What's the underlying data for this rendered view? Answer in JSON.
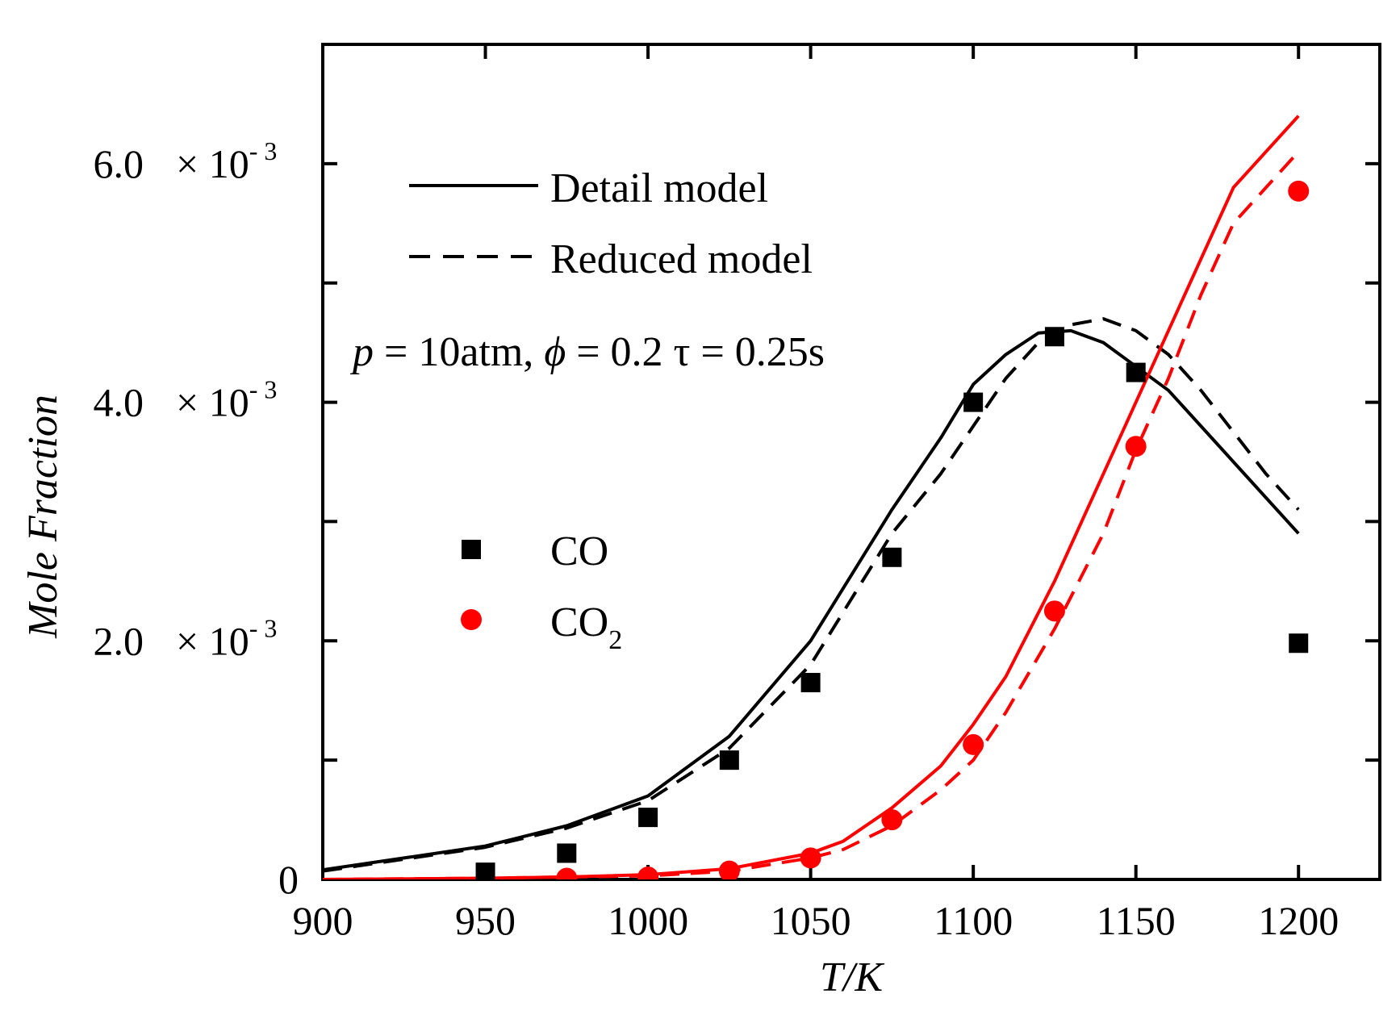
{
  "chart_data": {
    "type": "line",
    "xlabel": "T/K",
    "ylabel": "Mole Fraction",
    "xlim": [
      900,
      1225
    ],
    "ylim": [
      0,
      0.007
    ],
    "xticks": [
      900,
      950,
      1000,
      1050,
      1100,
      1150,
      1200
    ],
    "x_tick_labels": [
      "900",
      "950",
      "1000",
      "1050",
      "1100",
      "1150",
      "1200"
    ],
    "yticks_labeled": [
      {
        "value": 0,
        "mantissa": "0",
        "times": "",
        "base": "",
        "exponent": ""
      },
      {
        "value": 0.002,
        "mantissa": "2.0",
        "times": "×",
        "base": "10",
        "exponent": "- 3"
      },
      {
        "value": 0.004,
        "mantissa": "4.0",
        "times": "×",
        "base": "10",
        "exponent": "- 3"
      },
      {
        "value": 0.006,
        "mantissa": "6.0",
        "times": "×",
        "base": "10",
        "exponent": "- 3"
      }
    ],
    "yticks_minor": [
      0.001,
      0.003,
      0.005
    ],
    "annotation": {
      "p_symbol": "p",
      "p_text": " = 10atm, ",
      "phi_symbol": "ϕ",
      "phi_text": " = 0.2 τ = 0.25s"
    },
    "legend": {
      "lines": [
        {
          "label": "Detail model",
          "style": "solid"
        },
        {
          "label": "Reduced model",
          "style": "dashed"
        }
      ],
      "markers": [
        {
          "label_main": "CO",
          "label_sub": "",
          "marker": "square",
          "color": "#000000"
        },
        {
          "label_main": "CO",
          "label_sub": "2",
          "marker": "circle",
          "color": "#ff0000"
        }
      ]
    },
    "series": [
      {
        "name": "CO detail model",
        "kind": "line",
        "style": "solid",
        "color": "#000000",
        "x": [
          900,
          925,
          950,
          975,
          1000,
          1025,
          1050,
          1075,
          1090,
          1100,
          1110,
          1120,
          1130,
          1140,
          1150,
          1160,
          1170,
          1180,
          1190,
          1200
        ],
        "y": [
          8e-05,
          0.00018,
          0.00028,
          0.00045,
          0.0007,
          0.0012,
          0.002,
          0.0031,
          0.0037,
          0.00415,
          0.0044,
          0.00458,
          0.0046,
          0.0045,
          0.0043,
          0.0041,
          0.0038,
          0.0035,
          0.0032,
          0.0029
        ]
      },
      {
        "name": "CO reduced model",
        "kind": "line",
        "style": "dashed",
        "color": "#000000",
        "x": [
          900,
          925,
          950,
          975,
          1000,
          1025,
          1050,
          1075,
          1090,
          1100,
          1110,
          1120,
          1130,
          1140,
          1150,
          1160,
          1170,
          1180,
          1190,
          1200
        ],
        "y": [
          7e-05,
          0.00017,
          0.00027,
          0.00043,
          0.00066,
          0.0011,
          0.0018,
          0.0029,
          0.0034,
          0.0038,
          0.0042,
          0.0045,
          0.00465,
          0.0047,
          0.0046,
          0.0044,
          0.0041,
          0.00375,
          0.0034,
          0.0031
        ]
      },
      {
        "name": "CO2 detail model",
        "kind": "line",
        "style": "solid",
        "color": "#ff0000",
        "x": [
          900,
          950,
          975,
          1000,
          1025,
          1050,
          1060,
          1075,
          1090,
          1100,
          1110,
          1125,
          1140,
          1150,
          1160,
          1170,
          1180,
          1200
        ],
        "y": [
          0,
          1e-05,
          2e-05,
          4e-05,
          9e-05,
          0.00022,
          0.00032,
          0.0006,
          0.00095,
          0.0013,
          0.0017,
          0.0025,
          0.0034,
          0.004,
          0.0046,
          0.0052,
          0.0058,
          0.0064
        ]
      },
      {
        "name": "CO2 reduced model",
        "kind": "line",
        "style": "dashed",
        "color": "#ff0000",
        "x": [
          900,
          950,
          975,
          1000,
          1025,
          1050,
          1060,
          1075,
          1090,
          1100,
          1110,
          1125,
          1140,
          1150,
          1160,
          1170,
          1180,
          1200
        ],
        "y": [
          0,
          1e-05,
          2e-05,
          3e-05,
          7e-05,
          0.00018,
          0.00025,
          0.00045,
          0.00075,
          0.001,
          0.0014,
          0.0021,
          0.0029,
          0.0036,
          0.0042,
          0.0049,
          0.0055,
          0.0061
        ]
      },
      {
        "name": "CO",
        "kind": "scatter",
        "marker": "square",
        "color": "#000000",
        "x": [
          950,
          975,
          1000,
          1025,
          1050,
          1075,
          1100,
          1125,
          1150,
          1200
        ],
        "y": [
          6e-05,
          0.00022,
          0.00052,
          0.001,
          0.00165,
          0.0027,
          0.004,
          0.00455,
          0.00425,
          0.00198
        ]
      },
      {
        "name": "CO2",
        "kind": "scatter",
        "marker": "circle",
        "color": "#ff0000",
        "x": [
          975,
          1000,
          1025,
          1050,
          1075,
          1100,
          1125,
          1150,
          1200
        ],
        "y": [
          1e-05,
          2e-05,
          7e-05,
          0.00018,
          0.0005,
          0.00113,
          0.00225,
          0.00363,
          0.00577
        ]
      }
    ]
  }
}
